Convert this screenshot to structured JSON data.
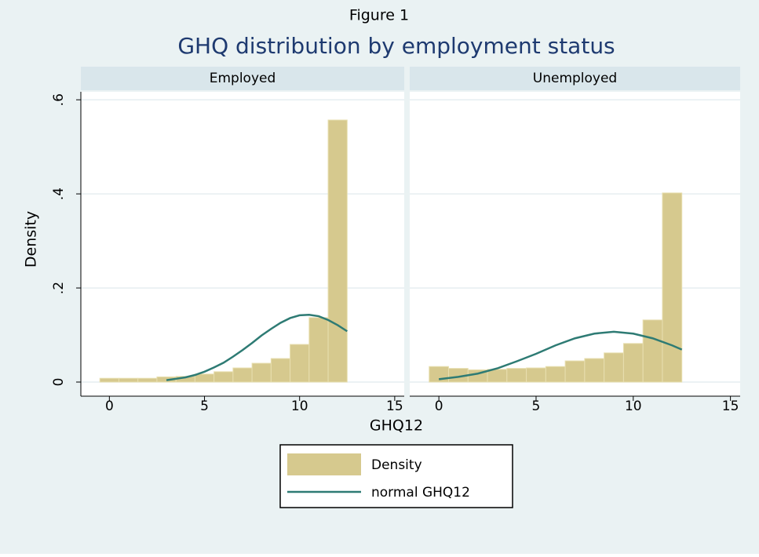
{
  "chart_data": {
    "type": "histogram",
    "figure_label": "Figure 1",
    "title": "GHQ distribution by employment status",
    "x_label": "GHQ12",
    "y_label": "Density",
    "xlim": [
      -1.5,
      15.5
    ],
    "xticks": [
      0,
      5,
      10,
      15
    ],
    "ylim": [
      -0.03,
      0.617
    ],
    "yticks": [
      0,
      {
        "value": 0.2,
        "label": ".2"
      },
      {
        "value": 0.4,
        "label": ".4"
      },
      {
        "value": 0.6,
        "label": ".6"
      }
    ],
    "grid": true,
    "bins": [
      -0.5,
      0.5,
      1.5,
      2.5,
      3.5,
      4.5,
      5.5,
      6.5,
      7.5,
      8.5,
      9.5,
      10.5,
      11.5,
      12.5
    ],
    "legend": [
      {
        "name": "Density",
        "color": "#d6c98e"
      },
      {
        "name": "normal GHQ12",
        "color": "#2e7b74"
      }
    ],
    "panels": [
      {
        "name": "Employed",
        "values": [
          0.008,
          0.008,
          0.008,
          0.011,
          0.012,
          0.017,
          0.022,
          0.03,
          0.04,
          0.05,
          0.08,
          0.137,
          0.557
        ],
        "curve_x": [
          3,
          3.5,
          4,
          4.5,
          5,
          5.5,
          6,
          6.5,
          7,
          7.5,
          8,
          8.5,
          9,
          9.5,
          10,
          10.5,
          11,
          11.5,
          12,
          12.5
        ],
        "curve_values": [
          0.004,
          0.007,
          0.01,
          0.015,
          0.022,
          0.031,
          0.041,
          0.054,
          0.068,
          0.083,
          0.099,
          0.113,
          0.126,
          0.136,
          0.142,
          0.143,
          0.14,
          0.132,
          0.121,
          0.108
        ]
      },
      {
        "name": "Unemployed",
        "values": [
          0.033,
          0.029,
          0.026,
          0.027,
          0.029,
          0.03,
          0.033,
          0.045,
          0.05,
          0.062,
          0.082,
          0.132,
          0.402
        ],
        "curve_x": [
          0,
          1,
          2,
          3,
          4,
          5,
          6,
          7,
          8,
          9,
          10,
          11,
          12,
          12.5
        ],
        "curve_values": [
          0.006,
          0.011,
          0.018,
          0.029,
          0.044,
          0.06,
          0.078,
          0.093,
          0.103,
          0.107,
          0.103,
          0.093,
          0.078,
          0.069
        ]
      }
    ]
  }
}
